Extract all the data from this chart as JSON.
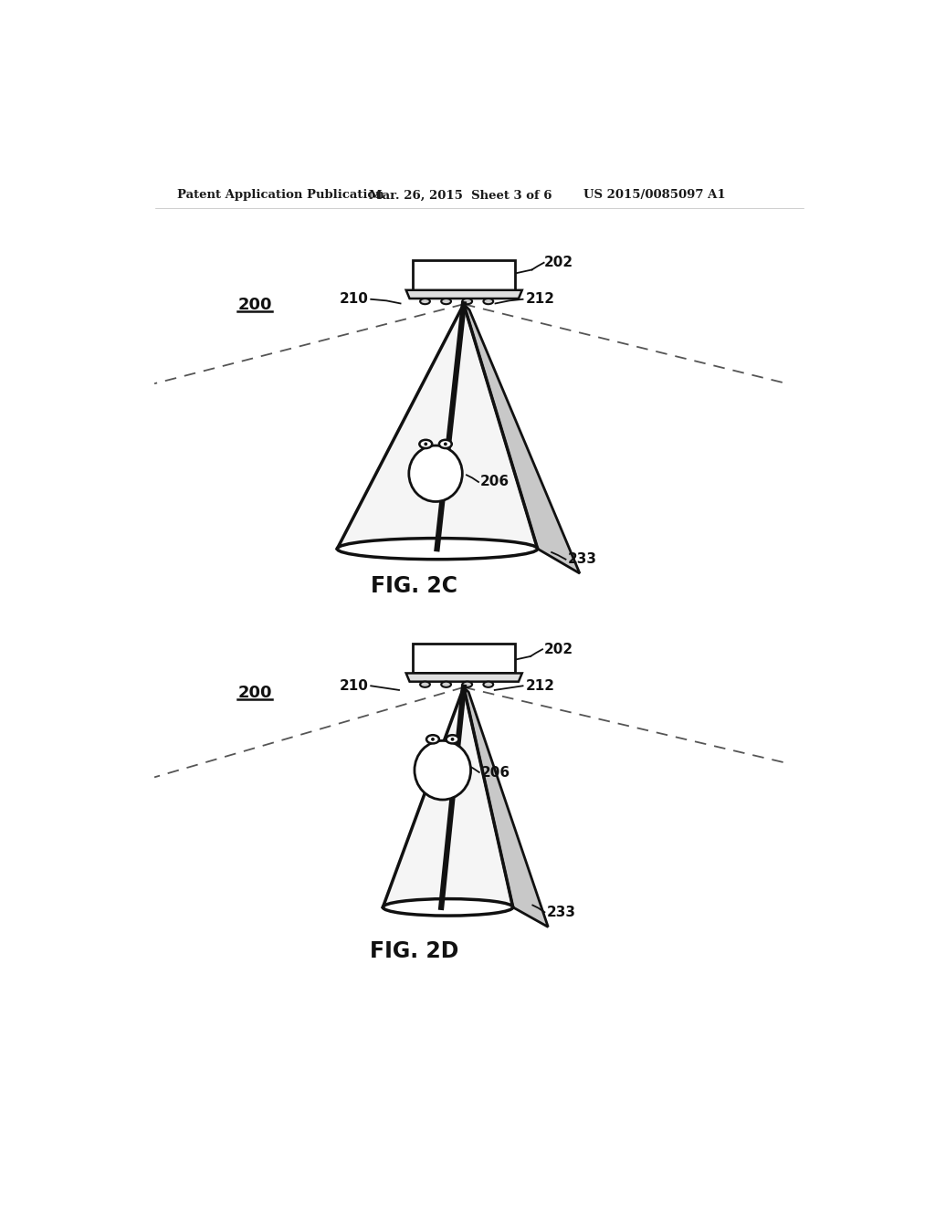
{
  "bg_color": "#ffffff",
  "header_left": "Patent Application Publication",
  "header_mid": "Mar. 26, 2015  Sheet 3 of 6",
  "header_right": "US 2015/0085097 A1",
  "fig2c_label": "FIG. 2C",
  "fig2d_label": "FIG. 2D",
  "label_200": "200",
  "label_202": "202",
  "label_206": "206",
  "label_210": "210",
  "label_212": "212",
  "label_233": "233",
  "line_color": "#111111",
  "dash_color": "#555555",
  "shadow_color": "#cccccc"
}
